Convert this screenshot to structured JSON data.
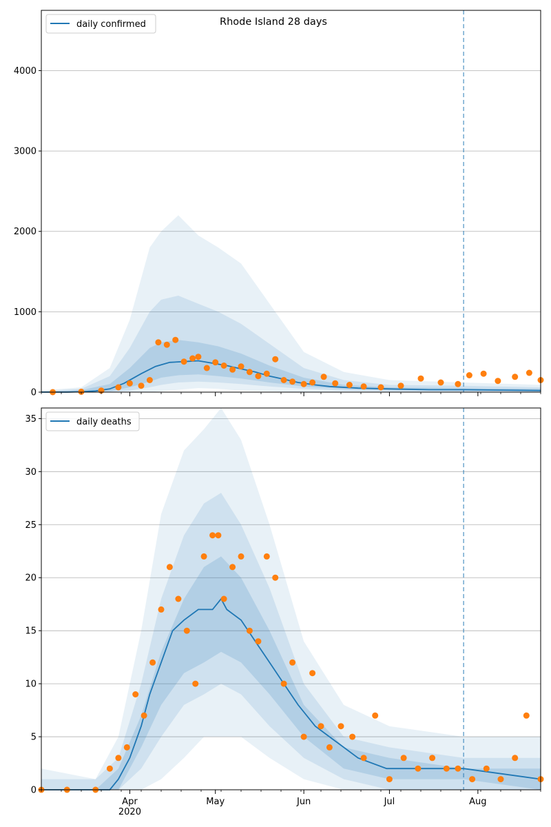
{
  "chart_data": [
    {
      "type": "line",
      "title": "Rhode Island 28 days",
      "ylabel": "",
      "xlabel": "",
      "ylim": [
        0,
        4750
      ],
      "yticks": [
        0,
        1000,
        2000,
        3000,
        4000
      ],
      "grid": "horizontal",
      "legend": {
        "position": "top-left",
        "entries": [
          "daily confirmed"
        ]
      },
      "forecast_start": "2020-07-27",
      "series": [
        {
          "name": "daily confirmed",
          "kind": "median line",
          "x": [
            "2020-03-01",
            "2020-03-10",
            "2020-03-15",
            "2020-03-20",
            "2020-03-25",
            "2020-03-30",
            "2020-04-05",
            "2020-04-10",
            "2020-04-15",
            "2020-04-20",
            "2020-04-25",
            "2020-04-30",
            "2020-05-05",
            "2020-05-10",
            "2020-05-15",
            "2020-05-20",
            "2020-05-25",
            "2020-05-30",
            "2020-06-05",
            "2020-06-10",
            "2020-06-20",
            "2020-07-01",
            "2020-07-15",
            "2020-07-27",
            "2020-08-10",
            "2020-08-23"
          ],
          "values": [
            0,
            0,
            5,
            15,
            40,
            110,
            230,
            320,
            370,
            380,
            390,
            360,
            330,
            290,
            250,
            200,
            160,
            120,
            90,
            70,
            50,
            40,
            30,
            30,
            25,
            20
          ]
        },
        {
          "name": "observed",
          "kind": "points",
          "x": [
            "2020-03-05",
            "2020-03-15",
            "2020-03-22",
            "2020-03-28",
            "2020-04-01",
            "2020-04-05",
            "2020-04-08",
            "2020-04-11",
            "2020-04-14",
            "2020-04-17",
            "2020-04-20",
            "2020-04-23",
            "2020-04-25",
            "2020-04-28",
            "2020-05-01",
            "2020-05-04",
            "2020-05-07",
            "2020-05-10",
            "2020-05-13",
            "2020-05-16",
            "2020-05-19",
            "2020-05-22",
            "2020-05-25",
            "2020-05-28",
            "2020-06-01",
            "2020-06-04",
            "2020-06-08",
            "2020-06-12",
            "2020-06-17",
            "2020-06-22",
            "2020-06-28",
            "2020-07-05",
            "2020-07-12",
            "2020-07-19",
            "2020-07-25",
            "2020-07-29",
            "2020-08-03",
            "2020-08-08",
            "2020-08-14",
            "2020-08-19",
            "2020-08-23"
          ],
          "values": [
            0,
            5,
            20,
            60,
            110,
            80,
            150,
            620,
            590,
            650,
            380,
            420,
            440,
            300,
            370,
            330,
            280,
            320,
            250,
            200,
            230,
            410,
            150,
            130,
            100,
            120,
            190,
            110,
            90,
            70,
            60,
            80,
            170,
            120,
            100,
            210,
            230,
            140,
            190,
            240,
            150
          ]
        }
      ],
      "bands": [
        {
          "level": "outer",
          "x": [
            "2020-03-01",
            "2020-03-15",
            "2020-03-25",
            "2020-04-01",
            "2020-04-08",
            "2020-04-12",
            "2020-04-18",
            "2020-04-25",
            "2020-05-02",
            "2020-05-10",
            "2020-05-20",
            "2020-06-01",
            "2020-06-15",
            "2020-07-01",
            "2020-07-27",
            "2020-08-23"
          ],
          "lower": [
            0,
            0,
            0,
            0,
            0,
            10,
            30,
            50,
            40,
            20,
            10,
            0,
            0,
            0,
            0,
            0
          ],
          "upper": [
            20,
            60,
            300,
            900,
            1800,
            2000,
            2200,
            1950,
            1800,
            1600,
            1100,
            500,
            250,
            150,
            120,
            90
          ]
        },
        {
          "level": "middle",
          "x": [
            "2020-03-01",
            "2020-03-15",
            "2020-03-25",
            "2020-04-01",
            "2020-04-08",
            "2020-04-12",
            "2020-04-18",
            "2020-04-25",
            "2020-05-02",
            "2020-05-10",
            "2020-05-20",
            "2020-06-01",
            "2020-06-15",
            "2020-07-01",
            "2020-07-27",
            "2020-08-23"
          ],
          "lower": [
            0,
            0,
            0,
            20,
            60,
            90,
            120,
            130,
            120,
            100,
            70,
            40,
            20,
            10,
            5,
            0
          ],
          "upper": [
            10,
            40,
            200,
            550,
            1000,
            1150,
            1200,
            1100,
            1000,
            850,
            600,
            300,
            150,
            90,
            80,
            60
          ]
        },
        {
          "level": "inner",
          "x": [
            "2020-03-01",
            "2020-03-15",
            "2020-03-25",
            "2020-04-01",
            "2020-04-08",
            "2020-04-12",
            "2020-04-18",
            "2020-04-25",
            "2020-05-02",
            "2020-05-10",
            "2020-05-20",
            "2020-06-01",
            "2020-06-15",
            "2020-07-01",
            "2020-07-27",
            "2020-08-23"
          ],
          "lower": [
            0,
            0,
            10,
            60,
            130,
            180,
            210,
            220,
            200,
            170,
            120,
            70,
            40,
            25,
            20,
            10
          ],
          "upper": [
            5,
            25,
            100,
            300,
            550,
            620,
            650,
            620,
            570,
            480,
            330,
            180,
            90,
            60,
            50,
            40
          ]
        }
      ]
    },
    {
      "type": "line",
      "title": "",
      "ylabel": "",
      "xlabel": "",
      "ylim": [
        0,
        36
      ],
      "yticks": [
        0,
        5,
        10,
        15,
        20,
        25,
        30,
        35
      ],
      "grid": "horizontal",
      "legend": {
        "position": "top-left",
        "entries": [
          "daily deaths"
        ]
      },
      "forecast_start": "2020-07-27",
      "x_tick_labels": [
        "Apr",
        "May",
        "Jun",
        "Jul",
        "Aug"
      ],
      "x_tick_dates": [
        "2020-04-01",
        "2020-05-01",
        "2020-06-01",
        "2020-07-01",
        "2020-08-01"
      ],
      "x_year_label": "2020",
      "x_range": [
        "2020-03-01",
        "2020-08-23"
      ],
      "series": [
        {
          "name": "daily deaths",
          "kind": "median line",
          "x": [
            "2020-03-01",
            "2020-03-25",
            "2020-03-28",
            "2020-04-01",
            "2020-04-05",
            "2020-04-08",
            "2020-04-12",
            "2020-04-16",
            "2020-04-20",
            "2020-04-25",
            "2020-04-30",
            "2020-05-03",
            "2020-05-05",
            "2020-05-10",
            "2020-05-15",
            "2020-05-20",
            "2020-05-25",
            "2020-05-30",
            "2020-06-05",
            "2020-06-10",
            "2020-06-15",
            "2020-06-20",
            "2020-06-30",
            "2020-07-10",
            "2020-07-27",
            "2020-08-23"
          ],
          "values": [
            0,
            0,
            1,
            3,
            6,
            9,
            12,
            15,
            16,
            17,
            17,
            18,
            17,
            16,
            14,
            12,
            10,
            8,
            6,
            5,
            4,
            3,
            2,
            2,
            2,
            1
          ]
        },
        {
          "name": "observed",
          "kind": "points",
          "x": [
            "2020-03-01",
            "2020-03-10",
            "2020-03-20",
            "2020-03-25",
            "2020-03-28",
            "2020-03-31",
            "2020-04-03",
            "2020-04-06",
            "2020-04-09",
            "2020-04-12",
            "2020-04-15",
            "2020-04-18",
            "2020-04-21",
            "2020-04-24",
            "2020-04-27",
            "2020-04-30",
            "2020-05-02",
            "2020-05-04",
            "2020-05-07",
            "2020-05-10",
            "2020-05-13",
            "2020-05-16",
            "2020-05-19",
            "2020-05-22",
            "2020-05-25",
            "2020-05-28",
            "2020-06-01",
            "2020-06-04",
            "2020-06-07",
            "2020-06-10",
            "2020-06-14",
            "2020-06-18",
            "2020-06-22",
            "2020-06-26",
            "2020-07-01",
            "2020-07-06",
            "2020-07-11",
            "2020-07-16",
            "2020-07-21",
            "2020-07-25",
            "2020-07-30",
            "2020-08-04",
            "2020-08-09",
            "2020-08-14",
            "2020-08-18",
            "2020-08-23"
          ],
          "values": [
            0,
            0,
            0,
            2,
            3,
            4,
            9,
            7,
            12,
            17,
            21,
            18,
            15,
            10,
            22,
            24,
            24,
            18,
            21,
            22,
            15,
            14,
            22,
            20,
            10,
            12,
            5,
            11,
            6,
            4,
            6,
            5,
            3,
            7,
            1,
            3,
            2,
            3,
            2,
            2,
            1,
            2,
            1,
            3,
            7,
            1
          ]
        }
      ],
      "bands": [
        {
          "level": "outer",
          "x": [
            "2020-03-01",
            "2020-03-20",
            "2020-03-28",
            "2020-04-05",
            "2020-04-12",
            "2020-04-20",
            "2020-04-27",
            "2020-05-03",
            "2020-05-10",
            "2020-05-20",
            "2020-06-01",
            "2020-06-15",
            "2020-07-01",
            "2020-07-27",
            "2020-08-23"
          ],
          "lower": [
            0,
            0,
            0,
            0,
            1,
            3,
            5,
            5,
            5,
            3,
            1,
            0,
            0,
            0,
            0
          ],
          "upper": [
            2,
            1,
            5,
            15,
            26,
            32,
            34,
            36,
            33,
            25,
            14,
            8,
            6,
            5,
            5
          ]
        },
        {
          "level": "middle",
          "x": [
            "2020-03-01",
            "2020-03-20",
            "2020-03-28",
            "2020-04-05",
            "2020-04-12",
            "2020-04-20",
            "2020-04-27",
            "2020-05-03",
            "2020-05-10",
            "2020-05-20",
            "2020-06-01",
            "2020-06-15",
            "2020-07-01",
            "2020-07-27",
            "2020-08-23"
          ],
          "lower": [
            0,
            0,
            0,
            2,
            5,
            8,
            9,
            10,
            9,
            6,
            3,
            1,
            0,
            0,
            0
          ],
          "upper": [
            1,
            1,
            3,
            10,
            18,
            24,
            27,
            28,
            25,
            19,
            10,
            5,
            4,
            3,
            3
          ]
        },
        {
          "level": "inner",
          "x": [
            "2020-03-01",
            "2020-03-20",
            "2020-03-28",
            "2020-04-05",
            "2020-04-12",
            "2020-04-20",
            "2020-04-27",
            "2020-05-03",
            "2020-05-10",
            "2020-05-20",
            "2020-06-01",
            "2020-06-15",
            "2020-07-01",
            "2020-07-27",
            "2020-08-23"
          ],
          "lower": [
            0,
            0,
            0,
            4,
            8,
            11,
            12,
            13,
            12,
            9,
            5,
            2,
            1,
            1,
            0
          ],
          "upper": [
            0,
            0,
            2,
            7,
            13,
            18,
            21,
            22,
            20,
            15,
            8,
            4,
            3,
            2,
            2
          ]
        }
      ]
    }
  ]
}
